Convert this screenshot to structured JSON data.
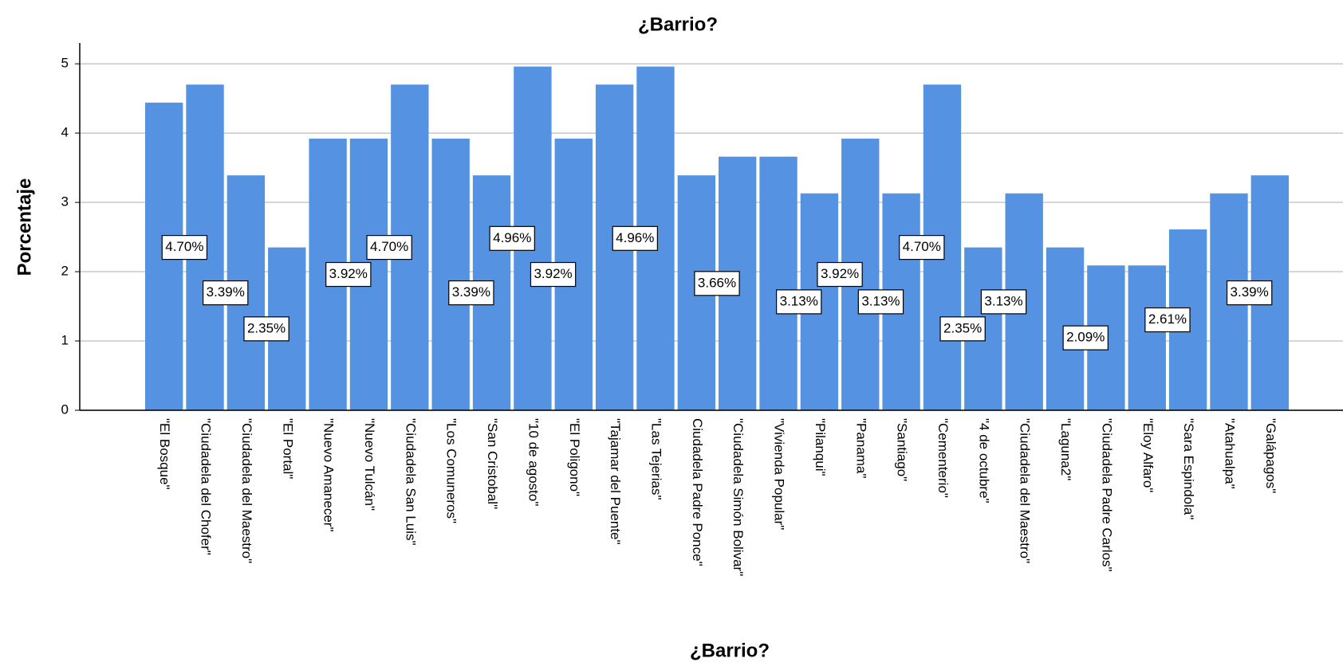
{
  "chart_data": {
    "type": "bar",
    "title": "¿Barrio?",
    "x_label": "¿Barrio?",
    "y_label": "Porcentaje",
    "categories": [
      "\"El Bosque\"",
      "\"Ciudadela del Chofer\"",
      "\"Ciudadela del Maestro\"",
      "\"El Portal\"",
      "\"Nuevo Amanecer\"",
      "\"Nuevo Tulcán\"",
      "\"Ciudadela San Luis\"",
      "\"Los Comuneros\"",
      "\"San Cristobal\"",
      "\"10 de agosto\"",
      "\"El Poligono\"",
      "\"Tajamar del Puente\"",
      "\"Las Tejerias\"",
      "Ciudadela Padre Ponce\"",
      "\"Ciudadela Simón Bolivar\"",
      "\"Vivienda Popular\"",
      "\"Pilanqui\"",
      "\"Panama\"",
      "\"Santiago\"",
      "\"Cementerio\"",
      "\"4 de octubre\"",
      "\"Ciudadela del Maestro\"",
      "\"Laguna2\"",
      "\"Ciudadela Padre Carlos\"",
      "\"Eloy Alfaro\"",
      "\"Sara Espindola\"",
      "\"Atahualpa\"",
      "\"Galápagos\""
    ],
    "values": [
      4.44,
      4.7,
      3.39,
      2.35,
      3.92,
      3.92,
      4.7,
      3.92,
      3.39,
      4.96,
      3.92,
      4.7,
      4.96,
      3.39,
      3.66,
      3.66,
      3.13,
      3.92,
      3.13,
      4.7,
      2.35,
      3.13,
      2.35,
      2.09,
      2.09,
      2.61,
      3.13,
      3.39
    ],
    "value_labels": [
      null,
      "4.70%",
      "3.39%",
      "2.35%",
      null,
      "3.92%",
      "4.70%",
      null,
      "3.39%",
      "4.96%",
      "3.92%",
      null,
      "4.96%",
      null,
      "3.66%",
      null,
      "3.13%",
      "3.92%",
      "3.13%",
      "4.70%",
      "2.35%",
      "3.13%",
      null,
      "2.09%",
      null,
      "2.61%",
      null,
      "3.39%"
    ],
    "color": "#5592e2",
    "ylim": [
      0,
      5.3
    ],
    "yticks": [
      0,
      1,
      2,
      3,
      4,
      5
    ],
    "grid": true
  }
}
